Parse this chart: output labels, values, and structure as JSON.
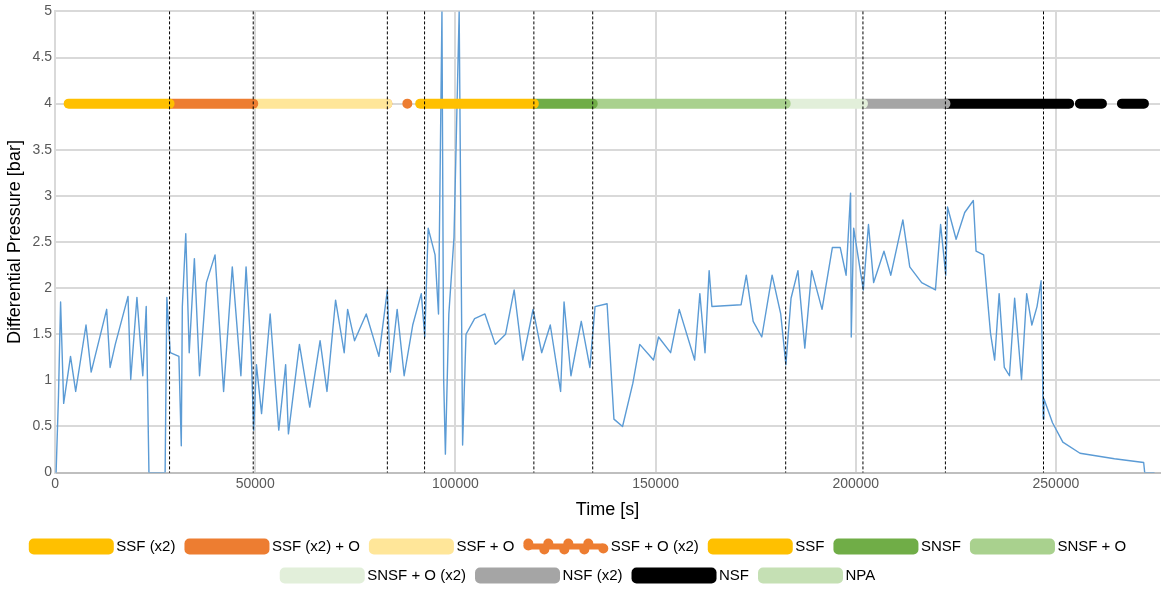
{
  "chart_data": {
    "type": "line",
    "xlabel": "Time [s]",
    "ylabel": "Differential Pressure [bar]",
    "xlim": [
      0,
      276000
    ],
    "xticks": [
      0,
      50000,
      100000,
      150000,
      200000,
      250000
    ],
    "ylim": [
      0,
      5
    ],
    "yticks": [
      0,
      0.5,
      1,
      1.5,
      2,
      2.5,
      3,
      3.5,
      4,
      4.5,
      5
    ],
    "grid": true,
    "legend": "bottom",
    "marker": "none",
    "ref_lines": [
      {
        "axis": "x",
        "value": 28600,
        "color": "#000000",
        "line_style": "dashed"
      },
      {
        "axis": "x",
        "value": 49500,
        "color": "#000000",
        "line_style": "dashed"
      },
      {
        "axis": "x",
        "value": 83000,
        "color": "#000000",
        "line_style": "dashed"
      },
      {
        "axis": "x",
        "value": 92300,
        "color": "#000000",
        "line_style": "dashed"
      },
      {
        "axis": "x",
        "value": 119600,
        "color": "#000000",
        "line_style": "dashed"
      },
      {
        "axis": "x",
        "value": 134300,
        "color": "#000000",
        "line_style": "dashed"
      },
      {
        "axis": "x",
        "value": 182500,
        "color": "#000000",
        "line_style": "dashed"
      },
      {
        "axis": "x",
        "value": 201800,
        "color": "#000000",
        "line_style": "dashed"
      },
      {
        "axis": "x",
        "value": 222400,
        "color": "#000000",
        "line_style": "dashed"
      },
      {
        "axis": "x",
        "value": 246900,
        "color": "#000000",
        "line_style": "dashed"
      }
    ],
    "series": [
      {
        "color": "#5b9bd5",
        "x": [
          0,
          260,
          860,
          1380,
          2150,
          3860,
          5150,
          7730,
          9020,
          12890,
          13750,
          15040,
          18220,
          18900,
          20450,
          21910,
          22770,
          23200,
          23450,
          27490,
          27920,
          28780,
          30930,
          31530,
          31790,
          32650,
          33510,
          34800,
          36090,
          37800,
          39960,
          42100,
          44270,
          46420,
          47710,
          49000,
          49610,
          50300,
          51580,
          53730,
          55880,
          57600,
          58290,
          61040,
          63620,
          66200,
          67920,
          70070,
          72220,
          73080,
          74800,
          77730,
          80890,
          83000,
          83740,
          85450,
          87200,
          89340,
          91480,
          92350,
          93200,
          94920,
          95780,
          96640,
          97070,
          97500,
          98360,
          99650,
          100940,
          101800,
          102650,
          104800,
          107380,
          109950,
          112530,
          114680,
          116830,
          119400,
          121550,
          123700,
          126280,
          127140,
          128860,
          131440,
          133590,
          134880,
          137890,
          139600,
          141750,
          144330,
          146050,
          149480,
          150740,
          153760,
          155910,
          159760,
          161060,
          162350,
          163380,
          164070,
          171370,
          172660,
          174380,
          176530,
          179110,
          181260,
          182550,
          183840,
          185560,
          187280,
          189000,
          191580,
          194160,
          196130,
          197590,
          198710,
          198880,
          199480,
          201890,
          203180,
          204470,
          207050,
          208760,
          211770,
          213490,
          216460,
          219910,
          221200,
          222490,
          222920,
          225070,
          227220,
          229370,
          230060,
          231950,
          233670,
          234700,
          235820,
          237110,
          238400,
          239690,
          241410,
          242700,
          243990,
          245280,
          246310,
          246830,
          247000,
          249150,
          251730,
          256020,
          264620,
          271920,
          272180,
          274500
        ],
        "values": [
          0,
          0,
          0.84,
          1.85,
          0.75,
          1.26,
          0.88,
          1.6,
          1.09,
          1.77,
          1.14,
          1.39,
          1.91,
          1.01,
          1.9,
          1.05,
          1.8,
          0.67,
          0,
          0,
          1.9,
          1.3,
          1.26,
          0.29,
          1.8,
          2.59,
          1.3,
          2.32,
          1.05,
          2.06,
          2.36,
          0.88,
          2.23,
          1.05,
          2.23,
          1.3,
          0.46,
          1.17,
          0.64,
          1.72,
          0.46,
          1.17,
          0.42,
          1.39,
          0.71,
          1.43,
          0.88,
          1.87,
          1.3,
          1.77,
          1.43,
          1.72,
          1.26,
          1.98,
          1.09,
          1.77,
          1.05,
          1.6,
          1.94,
          1.47,
          2.65,
          2.36,
          1.72,
          5,
          1.01,
          0.2,
          1.72,
          2.55,
          5,
          0.3,
          1.5,
          1.67,
          1.72,
          1.39,
          1.5,
          1.98,
          1.22,
          1.77,
          1.3,
          1.6,
          0.88,
          1.85,
          1.05,
          1.64,
          1.14,
          1.8,
          1.83,
          0.58,
          0.5,
          0.97,
          1.39,
          1.22,
          1.47,
          1.3,
          1.77,
          1.22,
          1.94,
          1.3,
          2.19,
          1.8,
          1.82,
          2.14,
          1.64,
          1.47,
          2.14,
          1.72,
          1.17,
          1.89,
          2.19,
          1.35,
          2.19,
          1.77,
          2.44,
          2.44,
          2.14,
          3.03,
          1.47,
          2.65,
          1.98,
          2.69,
          2.06,
          2.4,
          2.14,
          2.74,
          2.23,
          2.06,
          1.98,
          2.69,
          2.14,
          2.88,
          2.53,
          2.82,
          2.95,
          2.4,
          2.36,
          1.51,
          1.22,
          1.94,
          1.14,
          1.05,
          1.89,
          1.01,
          1.94,
          1.6,
          1.8,
          2.08,
          0.58,
          0.8,
          0.54,
          0.33,
          0.21,
          0.15,
          0.11,
          0,
          0
        ]
      },
      {
        "name": "SSF (x2)",
        "color": "#ffc000",
        "x": [
          3400,
          28600
        ],
        "values": [
          4,
          4
        ]
      },
      {
        "name": "SSF (x2) + O",
        "color": "#ed7d31",
        "x": [
          28600,
          49500
        ],
        "values": [
          4,
          4
        ]
      },
      {
        "name": "SSF + O",
        "color": "#ffe699",
        "x": [
          49500,
          83000
        ],
        "values": [
          4,
          4
        ]
      },
      {
        "name": "SSF + O (x2)",
        "color": "#ed7d31",
        "x": [
          83000,
          89000
        ],
        "values": [
          4,
          4
        ],
        "line_style": "dotted"
      },
      {
        "name": "SSF",
        "color": "#ffc000",
        "x": [
          91200,
          119600
        ],
        "values": [
          4,
          4
        ]
      },
      {
        "name": "SNSF",
        "color": "#70ad47",
        "x": [
          119600,
          134300
        ],
        "values": [
          4,
          4
        ]
      },
      {
        "name": "SNSF + O",
        "color": "#a9d18e",
        "x": [
          134300,
          182500
        ],
        "values": [
          4,
          4
        ]
      },
      {
        "name": "SNSF + O (x2)",
        "color": "#e2efda",
        "x": [
          182500,
          201800
        ],
        "values": [
          4,
          4
        ]
      },
      {
        "name": "NSF (x2)",
        "color": "#a5a5a5",
        "x": [
          201800,
          222400
        ],
        "values": [
          4,
          4
        ]
      },
      {
        "name": "NSF",
        "color": "#000000",
        "x": [
          222400,
          253300
        ],
        "values": [
          4,
          4
        ]
      },
      {
        "name": "NPA",
        "color": "#c5e0b4"
      },
      {
        "color": "#000000",
        "x": [
          256000,
          273500
        ],
        "values": [
          4,
          4
        ],
        "line_style": "dashed"
      }
    ]
  }
}
